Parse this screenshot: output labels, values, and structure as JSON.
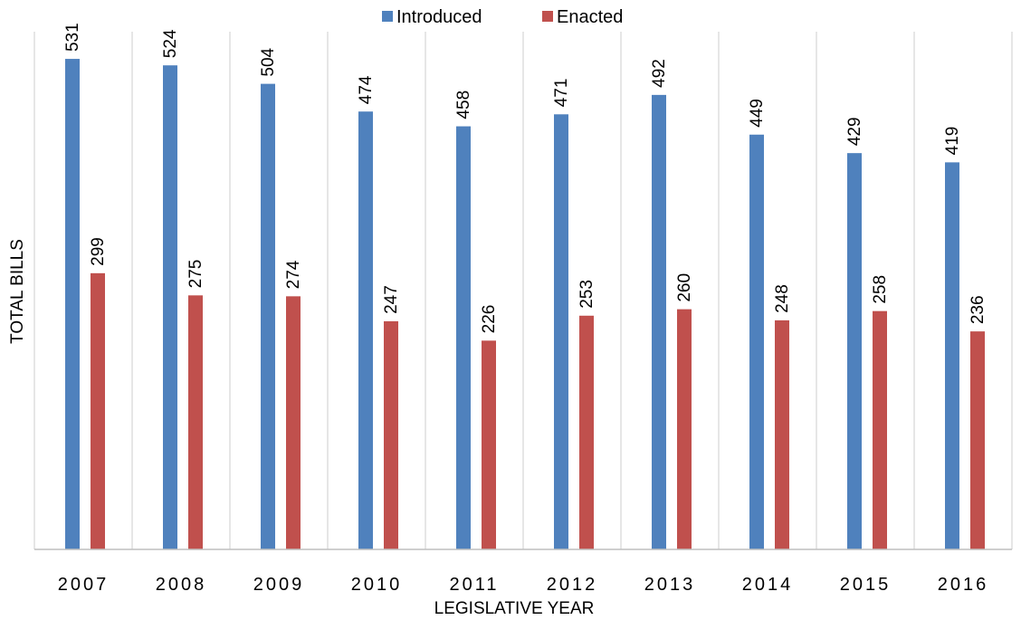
{
  "chart_data": {
    "type": "bar",
    "title": "",
    "xlabel": "LEGISLATIVE YEAR",
    "ylabel": "TOTAL BILLS",
    "categories": [
      "2007",
      "2008",
      "2009",
      "2010",
      "2011",
      "2012",
      "2013",
      "2014",
      "2015",
      "2016"
    ],
    "series": [
      {
        "name": "Introduced",
        "color": "#4F81BD",
        "values": [
          531,
          524,
          504,
          474,
          458,
          471,
          492,
          449,
          429,
          419
        ]
      },
      {
        "name": "Enacted",
        "color": "#C0504D",
        "values": [
          299,
          275,
          274,
          247,
          226,
          253,
          260,
          248,
          258,
          236
        ]
      }
    ],
    "ylim": [
      0,
      550
    ],
    "grid": "vertical category separators",
    "legend": "top-center",
    "data_labels": "rotated, above bars"
  }
}
